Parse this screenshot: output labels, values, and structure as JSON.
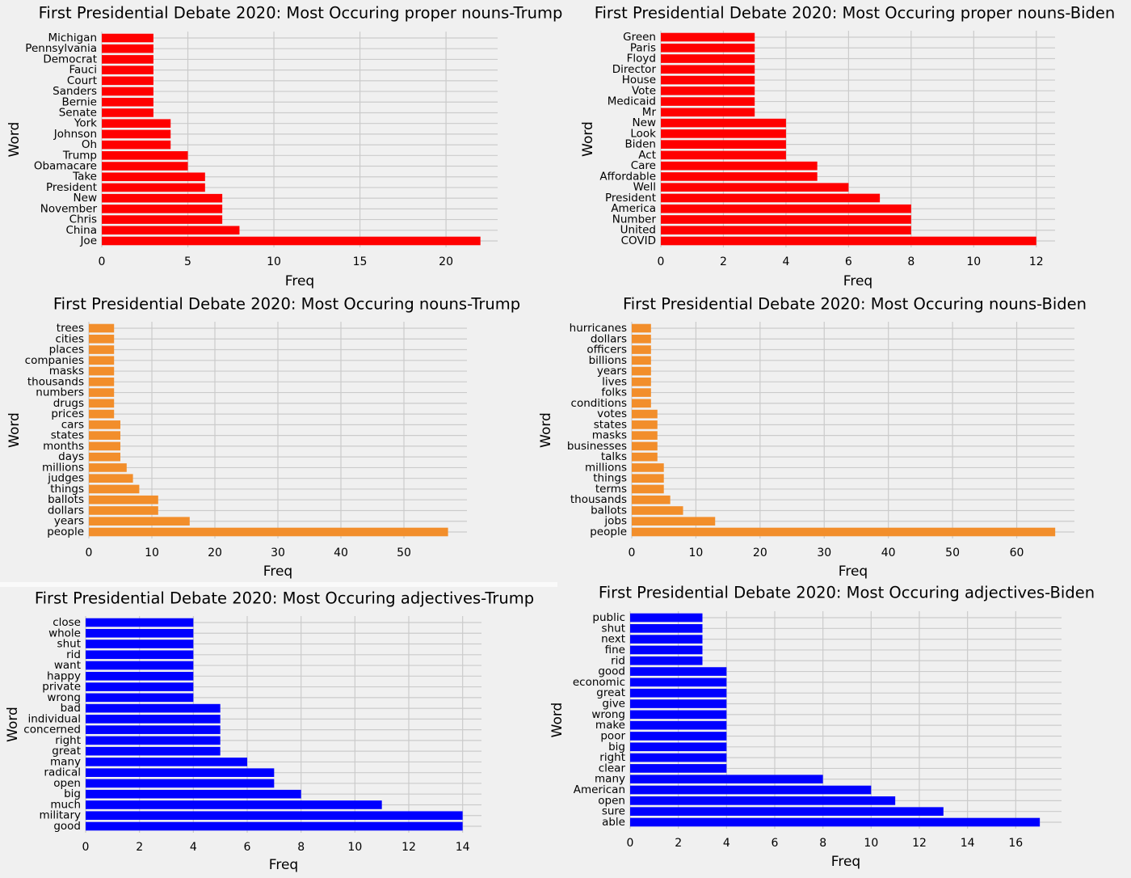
{
  "chart_data": [
    {
      "type": "bar",
      "orientation": "horizontal",
      "title": "First Presidential Debate 2020: Most Occuring proper nouns-Trump",
      "xlabel": "Freq",
      "ylabel": "Word",
      "color": "#ff0000",
      "xlim": [
        0,
        23
      ],
      "xticks": [
        0,
        5,
        10,
        15,
        20
      ],
      "grid": true,
      "categories": [
        "Joe",
        "China",
        "Chris",
        "November",
        "New",
        "President",
        "Take",
        "Obamacare",
        "Trump",
        "Oh",
        "Johnson",
        "York",
        "Senate",
        "Bernie",
        "Sanders",
        "Court",
        "Fauci",
        "Democrat",
        "Pennsylvania",
        "Michigan"
      ],
      "values": [
        22,
        8,
        7,
        7,
        7,
        6,
        6,
        5,
        5,
        4,
        4,
        4,
        3,
        3,
        3,
        3,
        3,
        3,
        3,
        3
      ]
    },
    {
      "type": "bar",
      "orientation": "horizontal",
      "title": "First Presidential Debate 2020: Most Occuring proper nouns-Biden",
      "xlabel": "Freq",
      "ylabel": "Word",
      "color": "#ff0000",
      "xlim": [
        0,
        12.6
      ],
      "xticks": [
        0,
        2,
        4,
        6,
        8,
        10,
        12
      ],
      "grid": true,
      "categories": [
        "COVID",
        "United",
        "Number",
        "America",
        "President",
        "Well",
        "Affordable",
        "Care",
        "Act",
        "Biden",
        "Look",
        "New",
        "Mr",
        "Medicaid",
        "Vote",
        "House",
        "Director",
        "Floyd",
        "Paris",
        "Green"
      ],
      "values": [
        12,
        8,
        8,
        8,
        7,
        6,
        5,
        5,
        4,
        4,
        4,
        4,
        3,
        3,
        3,
        3,
        3,
        3,
        3,
        3
      ]
    },
    {
      "type": "bar",
      "orientation": "horizontal",
      "title": "First Presidential Debate 2020: Most Occuring nouns-Trump",
      "xlabel": "Freq",
      "ylabel": "Word",
      "color": "#f28e2b",
      "xlim": [
        0,
        60
      ],
      "xticks": [
        0,
        10,
        20,
        30,
        40,
        50
      ],
      "grid": true,
      "categories": [
        "people",
        "years",
        "dollars",
        "ballots",
        "things",
        "judges",
        "millions",
        "days",
        "months",
        "states",
        "cars",
        "prices",
        "drugs",
        "numbers",
        "thousands",
        "masks",
        "companies",
        "places",
        "cities",
        "trees"
      ],
      "values": [
        57,
        16,
        11,
        11,
        8,
        7,
        6,
        5,
        5,
        5,
        5,
        4,
        4,
        4,
        4,
        4,
        4,
        4,
        4,
        4
      ]
    },
    {
      "type": "bar",
      "orientation": "horizontal",
      "title": "First Presidential Debate 2020: Most Occuring nouns-Biden",
      "xlabel": "Freq",
      "ylabel": "Word",
      "color": "#f28e2b",
      "xlim": [
        0,
        69
      ],
      "xticks": [
        0,
        10,
        20,
        30,
        40,
        50,
        60
      ],
      "grid": true,
      "categories": [
        "people",
        "jobs",
        "ballots",
        "thousands",
        "terms",
        "things",
        "millions",
        "talks",
        "businesses",
        "masks",
        "states",
        "votes",
        "conditions",
        "folks",
        "lives",
        "years",
        "billions",
        "officers",
        "dollars",
        "hurricanes"
      ],
      "values": [
        66,
        13,
        8,
        6,
        5,
        5,
        5,
        4,
        4,
        4,
        4,
        4,
        3,
        3,
        3,
        3,
        3,
        3,
        3,
        3
      ]
    },
    {
      "type": "bar",
      "orientation": "horizontal",
      "title": "First Presidential Debate 2020: Most Occuring adjectives-Trump",
      "xlabel": "Freq",
      "ylabel": "Word",
      "color": "#0000ff",
      "xlim": [
        0,
        14.7
      ],
      "xticks": [
        0,
        2,
        4,
        6,
        8,
        10,
        12,
        14
      ],
      "grid": true,
      "categories": [
        "good",
        "military",
        "much",
        "big",
        "open",
        "radical",
        "many",
        "great",
        "right",
        "concerned",
        "individual",
        "bad",
        "wrong",
        "private",
        "happy",
        "want",
        "rid",
        "shut",
        "whole",
        "close"
      ],
      "values": [
        14,
        14,
        11,
        8,
        7,
        7,
        6,
        5,
        5,
        5,
        5,
        5,
        4,
        4,
        4,
        4,
        4,
        4,
        4,
        4
      ]
    },
    {
      "type": "bar",
      "orientation": "horizontal",
      "title": "First Presidential Debate 2020: Most Occuring adjectives-Biden",
      "xlabel": "Freq",
      "ylabel": "Word",
      "color": "#0000ff",
      "xlim": [
        0,
        17.9
      ],
      "xticks": [
        0,
        2,
        4,
        6,
        8,
        10,
        12,
        14,
        16
      ],
      "grid": true,
      "categories": [
        "able",
        "sure",
        "open",
        "American",
        "many",
        "clear",
        "right",
        "big",
        "poor",
        "make",
        "wrong",
        "give",
        "great",
        "economic",
        "good",
        "rid",
        "fine",
        "next",
        "shut",
        "public"
      ],
      "values": [
        17,
        13,
        11,
        10,
        8,
        4,
        4,
        4,
        4,
        4,
        4,
        4,
        4,
        4,
        4,
        3,
        3,
        3,
        3,
        3
      ]
    }
  ]
}
